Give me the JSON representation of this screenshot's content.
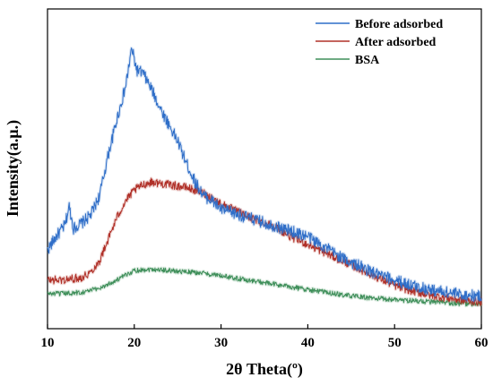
{
  "chart_data": {
    "type": "line",
    "title": "",
    "xlabel": "2θ Theta(º)",
    "ylabel": "Intensity(a.μ.)",
    "xlim": [
      10,
      60
    ],
    "ylim": [
      0,
      100
    ],
    "xticks": [
      10,
      20,
      30,
      40,
      50,
      60
    ],
    "yticks_shown": false,
    "grid": false,
    "legend_position": "top-right",
    "series": [
      {
        "name": "Before adsorbed",
        "color": "#2f6ec8",
        "x": [
          10,
          11,
          12,
          12.5,
          13,
          14,
          15,
          16,
          17,
          18,
          19,
          19.7,
          20.3,
          21,
          22,
          23,
          24,
          25,
          26,
          27,
          28,
          29,
          30,
          32,
          34,
          36,
          38,
          40,
          42,
          44,
          46,
          48,
          50,
          52,
          54,
          56,
          58,
          60
        ],
        "y": [
          20,
          25,
          29,
          36,
          28,
          30,
          33,
          40,
          55,
          68,
          80,
          94,
          86,
          85,
          79,
          72,
          66,
          60,
          52,
          45,
          40,
          38,
          35,
          33,
          31,
          29,
          27,
          25,
          21,
          17,
          14,
          11,
          9,
          7,
          5.5,
          4.5,
          3.5,
          3
        ]
      },
      {
        "name": "After adsorbed",
        "color": "#b03028",
        "x": [
          10,
          12,
          14,
          15,
          16,
          17,
          18,
          19,
          20,
          21,
          22,
          24,
          26,
          28,
          30,
          32,
          34,
          36,
          38,
          40,
          42,
          44,
          46,
          48,
          50,
          52,
          54,
          56,
          58,
          60
        ],
        "y": [
          9,
          9,
          10,
          12,
          16,
          24,
          32,
          38,
          42,
          44,
          45,
          44,
          43,
          41,
          37,
          34,
          31,
          29,
          25,
          22,
          19,
          16,
          13,
          10,
          7,
          5,
          3.5,
          2.5,
          1.5,
          1
        ]
      },
      {
        "name": "BSA",
        "color": "#3f8f5a",
        "x": [
          10,
          12,
          14,
          16,
          18,
          20,
          22,
          24,
          26,
          28,
          30,
          32,
          34,
          36,
          38,
          40,
          42,
          44,
          46,
          48,
          50,
          52,
          54,
          56,
          58,
          60
        ],
        "y": [
          4,
          4,
          4.5,
          6,
          9,
          12.5,
          13,
          12.5,
          12,
          11.5,
          10.5,
          9.5,
          8.5,
          7.5,
          6.5,
          5.5,
          4.5,
          3.5,
          2.8,
          2.2,
          1.8,
          1.4,
          1,
          0.6,
          0.3,
          0
        ]
      }
    ]
  }
}
